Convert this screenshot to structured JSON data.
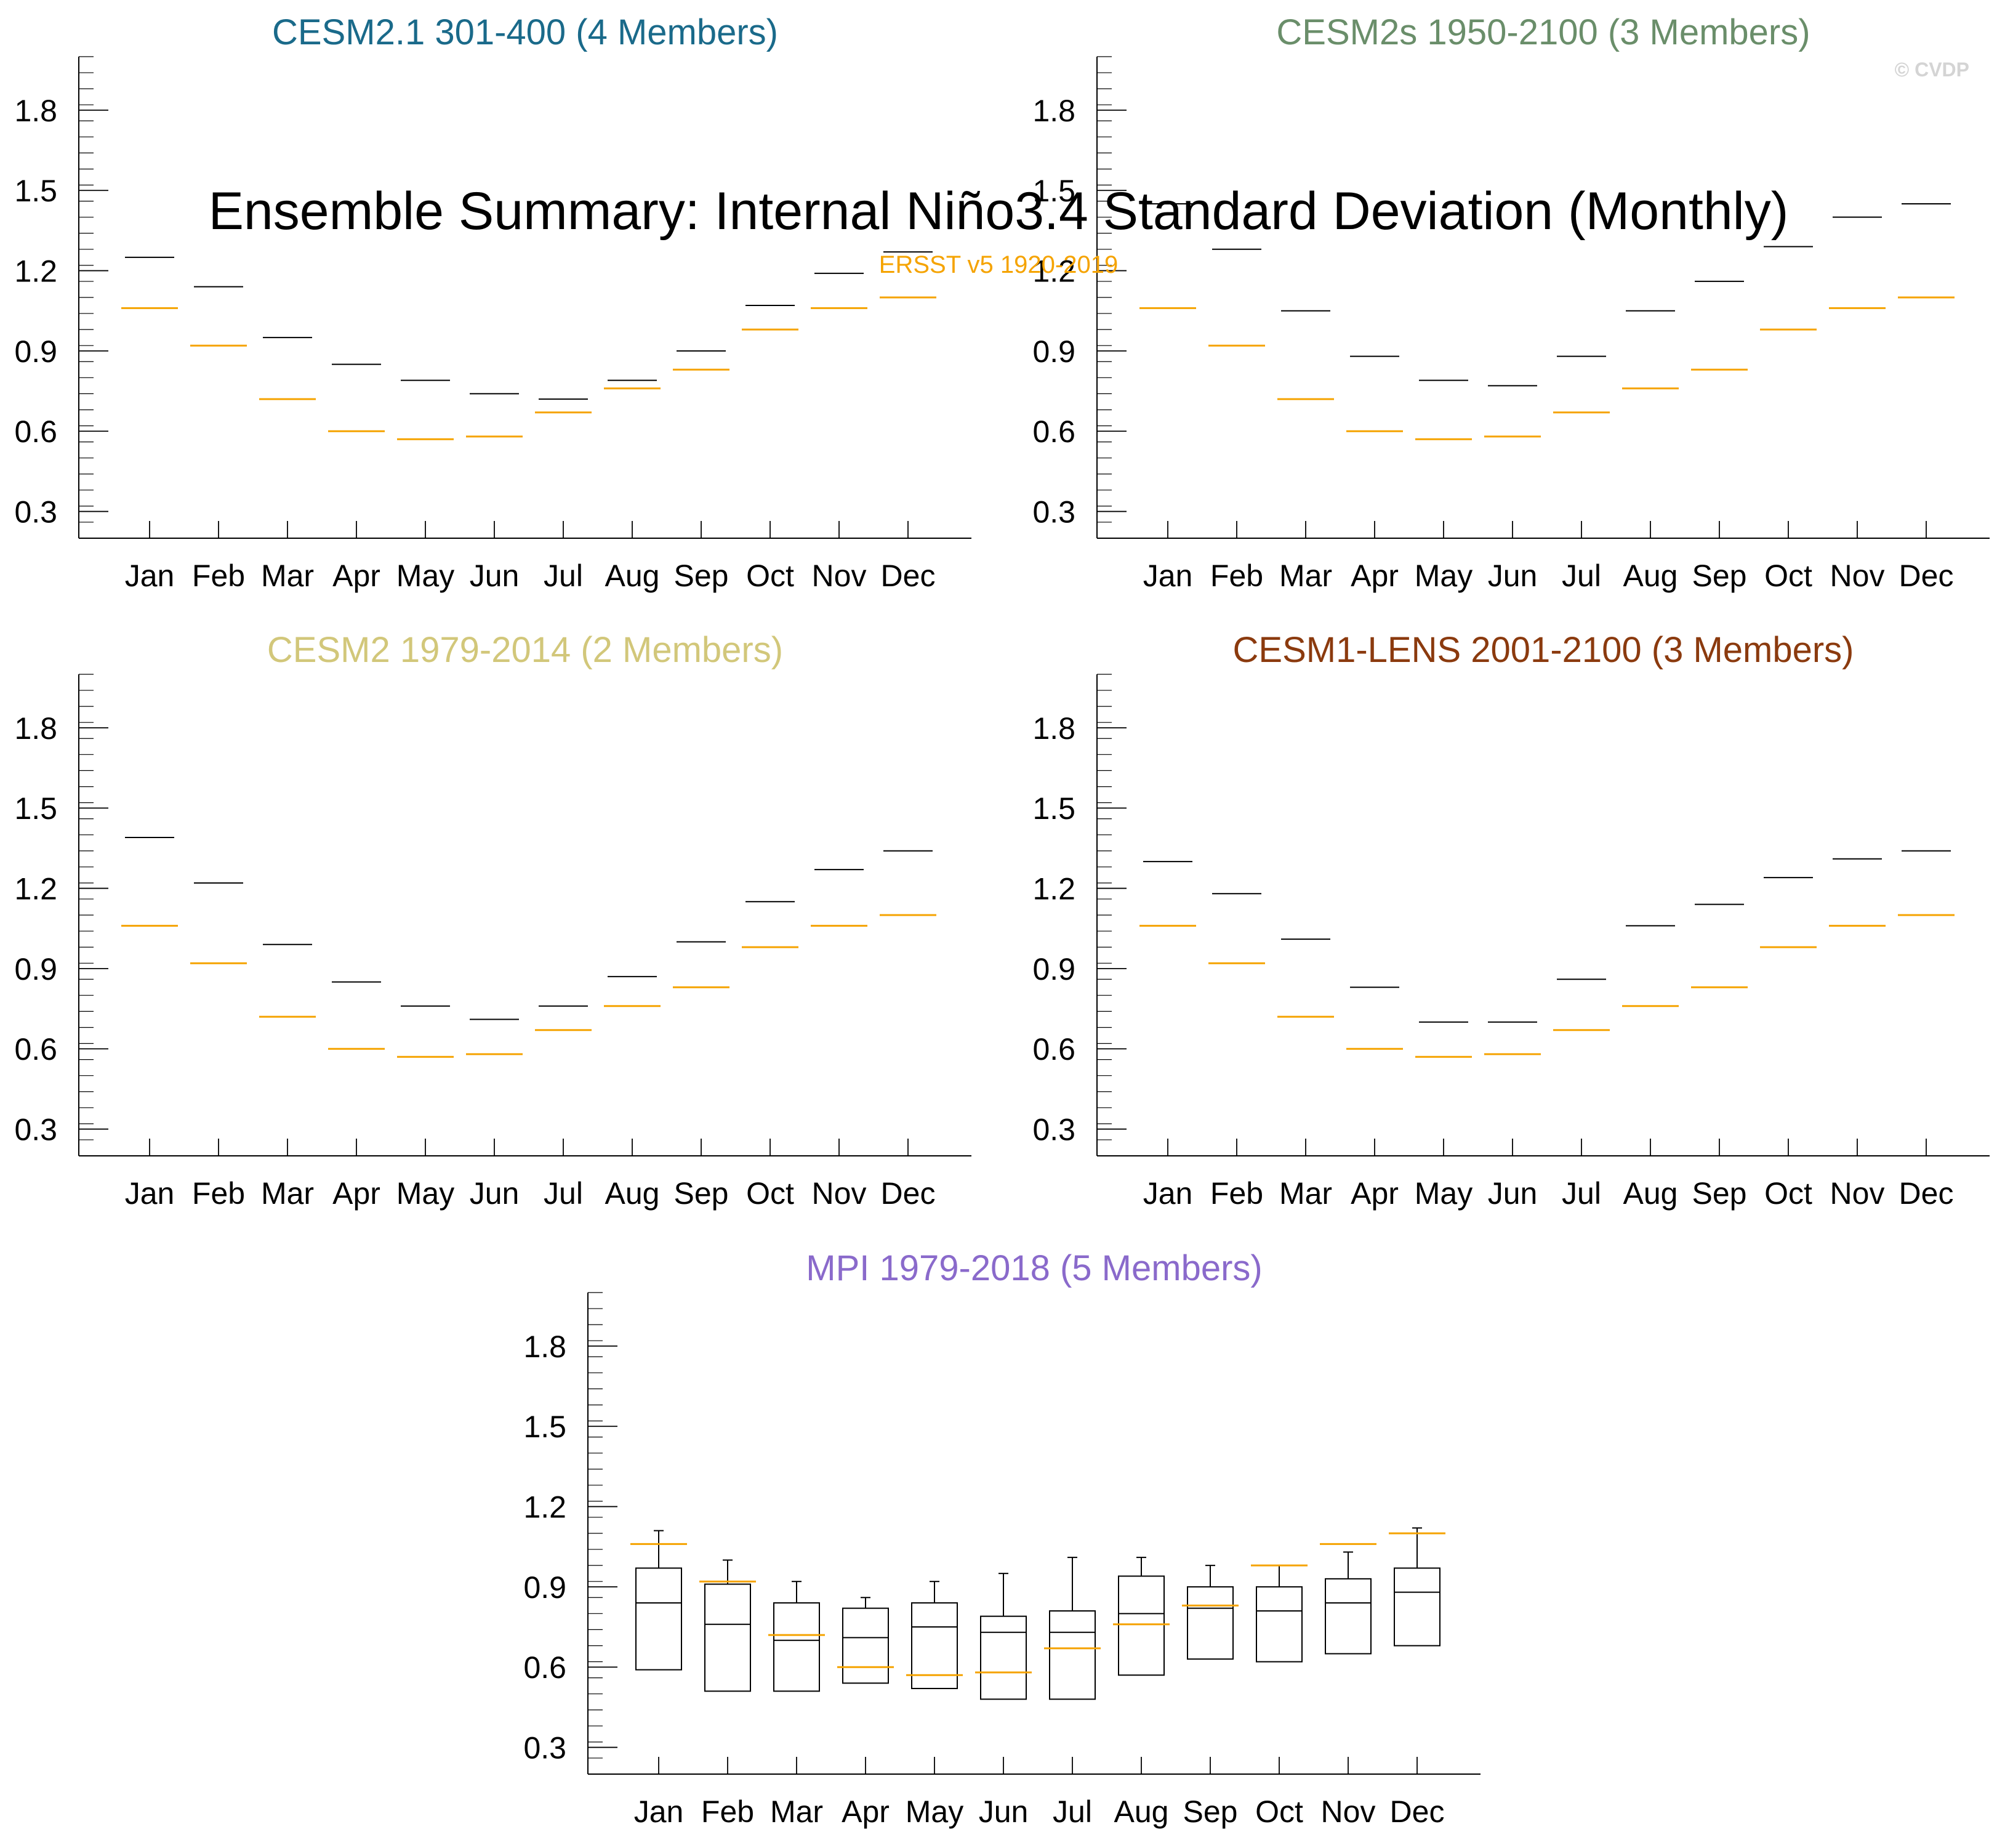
{
  "figure": {
    "title": "Ensemble Summary: Internal Niño3.4 Standard Deviation (Monthly)",
    "subtitle": "ERSST v5 1920-2019",
    "watermark": "© CVDP",
    "observed_color": "#f5a300",
    "ensemble_color": "#000000"
  },
  "chart_data": [
    {
      "type": "box",
      "title": "CESM2.1 301-400 (4 Members)",
      "title_color": "#1a6a8a",
      "categories": [
        "Jan",
        "Feb",
        "Mar",
        "Apr",
        "May",
        "Jun",
        "Jul",
        "Aug",
        "Sep",
        "Oct",
        "Nov",
        "Dec"
      ],
      "ylim": [
        0.2,
        2.0
      ],
      "yticks": [
        0.3,
        0.6,
        0.9,
        1.2,
        1.5,
        1.8
      ],
      "ensemble_median": [
        1.25,
        1.14,
        0.95,
        0.85,
        0.79,
        0.74,
        0.72,
        0.79,
        0.9,
        1.07,
        1.19,
        1.27
      ],
      "observed": [
        1.06,
        0.92,
        0.72,
        0.6,
        0.57,
        0.58,
        0.67,
        0.76,
        0.83,
        0.98,
        1.06,
        1.1
      ]
    },
    {
      "type": "box",
      "title": "CESM2s 1950-2100 (3 Members)",
      "title_color": "#6a8e6a",
      "categories": [
        "Jan",
        "Feb",
        "Mar",
        "Apr",
        "May",
        "Jun",
        "Jul",
        "Aug",
        "Sep",
        "Oct",
        "Nov",
        "Dec"
      ],
      "ylim": [
        0.2,
        2.0
      ],
      "yticks": [
        0.3,
        0.6,
        0.9,
        1.2,
        1.5,
        1.8
      ],
      "ensemble_median": [
        1.45,
        1.28,
        1.05,
        0.88,
        0.79,
        0.77,
        0.88,
        1.05,
        1.16,
        1.29,
        1.4,
        1.45
      ],
      "observed": [
        1.06,
        0.92,
        0.72,
        0.6,
        0.57,
        0.58,
        0.67,
        0.76,
        0.83,
        0.98,
        1.06,
        1.1
      ]
    },
    {
      "type": "box",
      "title": "CESM2 1979-2014 (2 Members)",
      "title_color": "#d2c77a",
      "categories": [
        "Jan",
        "Feb",
        "Mar",
        "Apr",
        "May",
        "Jun",
        "Jul",
        "Aug",
        "Sep",
        "Oct",
        "Nov",
        "Dec"
      ],
      "ylim": [
        0.2,
        2.0
      ],
      "yticks": [
        0.3,
        0.6,
        0.9,
        1.2,
        1.5,
        1.8
      ],
      "ensemble_median": [
        1.39,
        1.22,
        0.99,
        0.85,
        0.76,
        0.71,
        0.76,
        0.87,
        1.0,
        1.15,
        1.27,
        1.34
      ],
      "observed": [
        1.06,
        0.92,
        0.72,
        0.6,
        0.57,
        0.58,
        0.67,
        0.76,
        0.83,
        0.98,
        1.06,
        1.1
      ]
    },
    {
      "type": "box",
      "title": "CESM1-LENS 2001-2100 (3 Members)",
      "title_color": "#8b3a0e",
      "categories": [
        "Jan",
        "Feb",
        "Mar",
        "Apr",
        "May",
        "Jun",
        "Jul",
        "Aug",
        "Sep",
        "Oct",
        "Nov",
        "Dec"
      ],
      "ylim": [
        0.2,
        2.0
      ],
      "yticks": [
        0.3,
        0.6,
        0.9,
        1.2,
        1.5,
        1.8
      ],
      "ensemble_median": [
        1.3,
        1.18,
        1.01,
        0.83,
        0.7,
        0.7,
        0.86,
        1.06,
        1.14,
        1.24,
        1.31,
        1.34
      ],
      "observed": [
        1.06,
        0.92,
        0.72,
        0.6,
        0.57,
        0.58,
        0.67,
        0.76,
        0.83,
        0.98,
        1.06,
        1.1
      ]
    },
    {
      "type": "box",
      "title": "MPI 1979-2018 (5 Members)",
      "title_color": "#8a6acb",
      "categories": [
        "Jan",
        "Feb",
        "Mar",
        "Apr",
        "May",
        "Jun",
        "Jul",
        "Aug",
        "Sep",
        "Oct",
        "Nov",
        "Dec"
      ],
      "ylim": [
        0.2,
        2.0
      ],
      "yticks": [
        0.3,
        0.6,
        0.9,
        1.2,
        1.5,
        1.8
      ],
      "box_min": [
        0.59,
        0.51,
        0.51,
        0.54,
        0.52,
        0.48,
        0.48,
        0.57,
        0.63,
        0.62,
        0.65,
        0.68
      ],
      "box_q1": [
        0.59,
        0.51,
        0.51,
        0.54,
        0.52,
        0.48,
        0.48,
        0.57,
        0.63,
        0.62,
        0.65,
        0.68
      ],
      "box_median": [
        0.84,
        0.76,
        0.7,
        0.71,
        0.75,
        0.73,
        0.73,
        0.8,
        0.82,
        0.81,
        0.84,
        0.88
      ],
      "box_q3": [
        0.97,
        0.91,
        0.84,
        0.82,
        0.84,
        0.79,
        0.81,
        0.94,
        0.9,
        0.9,
        0.93,
        0.97
      ],
      "box_max": [
        1.11,
        1.0,
        0.92,
        0.86,
        0.92,
        0.95,
        1.01,
        1.01,
        0.98,
        0.98,
        1.03,
        1.12
      ],
      "observed": [
        1.06,
        0.92,
        0.72,
        0.6,
        0.57,
        0.58,
        0.67,
        0.76,
        0.83,
        0.98,
        1.06,
        1.1
      ]
    }
  ]
}
